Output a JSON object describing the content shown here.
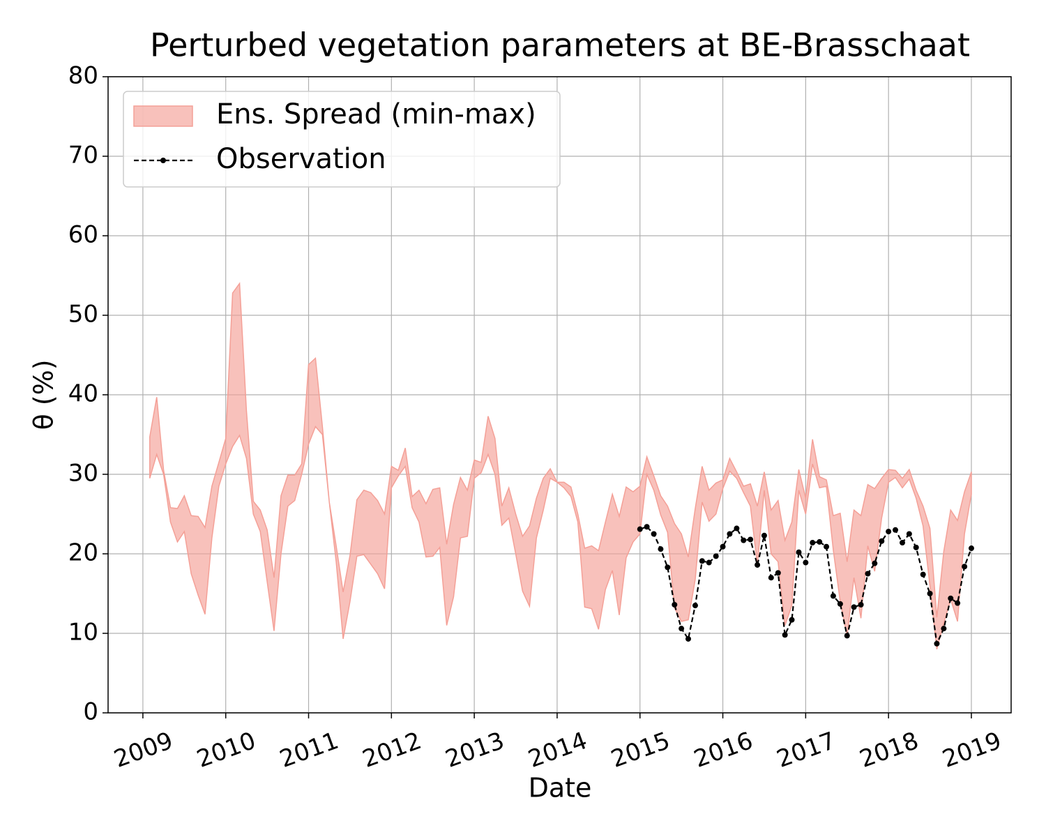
{
  "chart_data": {
    "type": "line",
    "title": "Perturbed vegetation parameters at BE-Brasschaat",
    "x_label": "Date",
    "y_label": "θ  (%)",
    "xlim": [
      2008.58,
      2019.48
    ],
    "ylim": [
      0,
      80
    ],
    "xticks": [
      2009,
      2010,
      2011,
      2012,
      2013,
      2014,
      2015,
      2016,
      2017,
      2018,
      2019
    ],
    "yticks": [
      0,
      10,
      20,
      30,
      40,
      50,
      60,
      70,
      80
    ],
    "grid": true,
    "legend": "upper left",
    "x": [
      2009.083,
      2009.167,
      2009.25,
      2009.333,
      2009.417,
      2009.5,
      2009.583,
      2009.667,
      2009.75,
      2009.833,
      2009.917,
      2010.0,
      2010.083,
      2010.167,
      2010.25,
      2010.333,
      2010.417,
      2010.5,
      2010.583,
      2010.667,
      2010.75,
      2010.833,
      2010.917,
      2011.0,
      2011.083,
      2011.167,
      2011.25,
      2011.333,
      2011.417,
      2011.5,
      2011.583,
      2011.667,
      2011.75,
      2011.833,
      2011.917,
      2012.0,
      2012.083,
      2012.167,
      2012.25,
      2012.333,
      2012.417,
      2012.5,
      2012.583,
      2012.667,
      2012.75,
      2012.833,
      2012.917,
      2013.0,
      2013.083,
      2013.167,
      2013.25,
      2013.333,
      2013.417,
      2013.5,
      2013.583,
      2013.667,
      2013.75,
      2013.833,
      2013.917,
      2014.0,
      2014.083,
      2014.167,
      2014.25,
      2014.333,
      2014.417,
      2014.5,
      2014.583,
      2014.667,
      2014.75,
      2014.833,
      2014.917,
      2015.0,
      2015.083,
      2015.167,
      2015.25,
      2015.333,
      2015.417,
      2015.5,
      2015.583,
      2015.667,
      2015.75,
      2015.833,
      2015.917,
      2016.0,
      2016.083,
      2016.167,
      2016.25,
      2016.333,
      2016.417,
      2016.5,
      2016.583,
      2016.667,
      2016.75,
      2016.833,
      2016.917,
      2017.0,
      2017.083,
      2017.167,
      2017.25,
      2017.333,
      2017.417,
      2017.5,
      2017.583,
      2017.667,
      2017.75,
      2017.833,
      2017.917,
      2018.0,
      2018.083,
      2018.167,
      2018.25,
      2018.333,
      2018.417,
      2018.5,
      2018.583,
      2018.667,
      2018.75,
      2018.833,
      2018.917,
      2019.0
    ],
    "series": [
      {
        "name": "Ens. Spread (min-max)",
        "kind": "band",
        "color": "#f4a097",
        "alpha": 0.65,
        "upper": [
          34.7,
          39.7,
          30.5,
          25.8,
          25.7,
          27.3,
          24.8,
          24.7,
          23.3,
          28.5,
          31.5,
          34.5,
          52.8,
          54,
          38,
          26.6,
          25.5,
          23,
          17,
          27.3,
          29.9,
          29.9,
          31.3,
          43.8,
          44.6,
          36,
          26.5,
          21,
          15.2,
          19.8,
          26.8,
          28,
          27.7,
          26.7,
          25,
          31,
          30.5,
          33.3,
          27.2,
          28,
          26.3,
          28.1,
          28.3,
          21.2,
          26.2,
          29.6,
          28,
          31.8,
          31.5,
          37.3,
          34.5,
          26,
          28.3,
          25,
          22.2,
          23.5,
          27,
          29.5,
          30.7,
          29,
          29,
          28.4,
          25,
          20.7,
          21,
          20.4,
          24,
          27.5,
          24.7,
          28.4,
          27.8,
          28.5,
          32.2,
          29.8,
          27.3,
          26,
          23.8,
          22.5,
          19.6,
          25.7,
          31,
          28,
          28.9,
          29.3,
          32,
          30.3,
          28.5,
          28.8,
          26,
          30.3,
          25.5,
          26.7,
          21.7,
          24,
          30.6,
          27,
          34.4,
          29.7,
          29.3,
          24.8,
          25.1,
          19,
          25.5,
          24.8,
          28.7,
          28.2,
          29.5,
          30.6,
          30.5,
          29.5,
          30.6,
          28,
          26,
          23.2,
          12,
          20.3,
          25.5,
          24.2,
          27.8,
          30.3
        ],
        "lower": [
          29.5,
          32.5,
          30,
          24,
          21.5,
          22.8,
          17.5,
          14.8,
          12.4,
          22,
          28.5,
          31.3,
          33.5,
          34.9,
          32,
          25,
          22.8,
          16.5,
          10.3,
          20,
          26,
          26.7,
          30,
          33.8,
          36,
          35,
          26.5,
          19,
          9.3,
          14,
          19.7,
          19.9,
          18.7,
          17.5,
          15.6,
          28.3,
          29.8,
          31,
          25.8,
          24,
          19.6,
          19.7,
          20.8,
          11,
          14.6,
          22,
          22.2,
          29.5,
          30.2,
          32.5,
          30,
          23.6,
          24.5,
          20,
          15.3,
          13.4,
          22,
          25.5,
          29.5,
          29,
          28.3,
          27.2,
          24,
          13.3,
          13.1,
          10.5,
          15.5,
          17.9,
          12.3,
          19.5,
          21.5,
          22.5,
          30,
          28,
          24.9,
          22.7,
          13.2,
          11.5,
          11.7,
          16.8,
          26.5,
          24.1,
          25,
          28.2,
          30.4,
          29.5,
          27.7,
          26,
          18.6,
          28,
          20,
          19,
          11,
          13.5,
          28,
          25,
          31.3,
          28.3,
          28.5,
          20.5,
          14,
          9.7,
          17,
          11.9,
          21,
          17.8,
          24.5,
          29,
          29.6,
          28.3,
          29.4,
          27,
          23.5,
          16,
          8,
          11.3,
          14.3,
          11.5,
          22.5,
          27.5
        ]
      },
      {
        "name": "Observation",
        "kind": "dashed",
        "color": "#000000",
        "values": [
          null,
          null,
          null,
          null,
          null,
          null,
          null,
          null,
          null,
          null,
          null,
          null,
          null,
          null,
          null,
          null,
          null,
          null,
          null,
          null,
          null,
          null,
          null,
          null,
          null,
          null,
          null,
          null,
          null,
          null,
          null,
          null,
          null,
          null,
          null,
          null,
          null,
          null,
          null,
          null,
          null,
          null,
          null,
          null,
          null,
          null,
          null,
          null,
          null,
          null,
          null,
          null,
          null,
          null,
          null,
          null,
          null,
          null,
          null,
          null,
          null,
          null,
          null,
          null,
          null,
          null,
          null,
          null,
          null,
          null,
          null,
          23.1,
          23.4,
          22.5,
          20.6,
          18.3,
          13.6,
          10.6,
          9.3,
          13.5,
          19.1,
          18.9,
          19.7,
          20.9,
          22.5,
          23.2,
          21.7,
          21.8,
          18.6,
          22.3,
          17.0,
          17.6,
          9.8,
          11.7,
          20.2,
          18.9,
          21.4,
          21.5,
          20.9,
          14.7,
          13.7,
          9.7,
          13.3,
          13.6,
          17.5,
          18.8,
          21.6,
          22.8,
          23.0,
          21.4,
          22.5,
          20.8,
          17.4,
          15.0,
          8.7,
          10.6,
          14.4,
          13.8,
          18.4,
          20.7
        ]
      }
    ]
  }
}
